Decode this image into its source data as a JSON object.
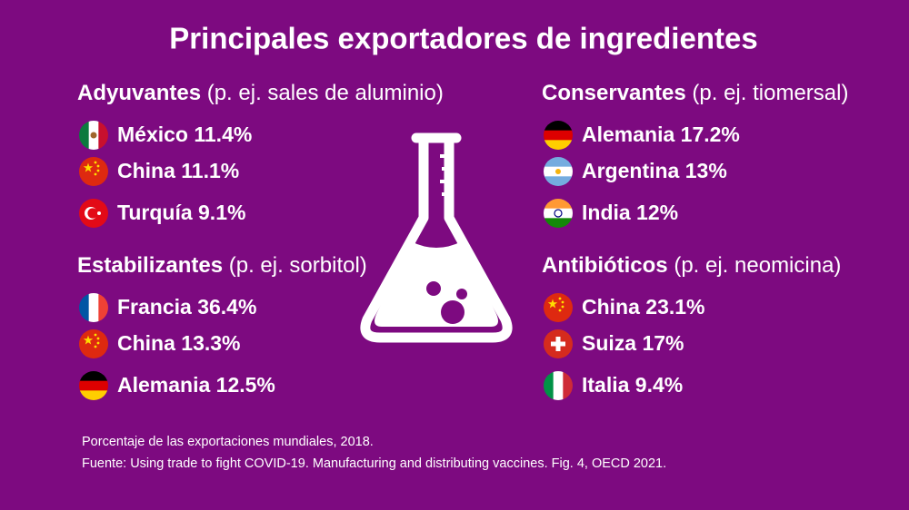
{
  "header": {
    "title": "Principales exportadores de ingredientes"
  },
  "groups": [
    {
      "name": "Adyuvantes",
      "example": "(p. ej. sales de aluminio)",
      "items": [
        "México 11.4%",
        "China 11.1%",
        "Turquía 9.1%"
      ]
    },
    {
      "name": "Estabilizantes",
      "example": "(p. ej. sorbitol)",
      "items": [
        "Francia 36.4%",
        "China 13.3%",
        "Alemania 12.5%"
      ]
    },
    {
      "name": "Conservantes",
      "example": "(p. ej. tiomersal)",
      "items": [
        "Alemania 17.2%",
        "Argentina 13%",
        "India 12%"
      ]
    },
    {
      "name": "Antibióticos",
      "example": "(p. ej. neomicina)",
      "items": [
        "China 23.1%",
        "Suiza 17%",
        "Italia 9.4%"
      ]
    }
  ],
  "footer": {
    "note": "Porcentaje de las exportaciones mundiales, 2018.",
    "source": "Fuente: Using trade to fight COVID-19. Manufacturing and distributing vaccines. Fig. 4, OECD 2021."
  }
}
